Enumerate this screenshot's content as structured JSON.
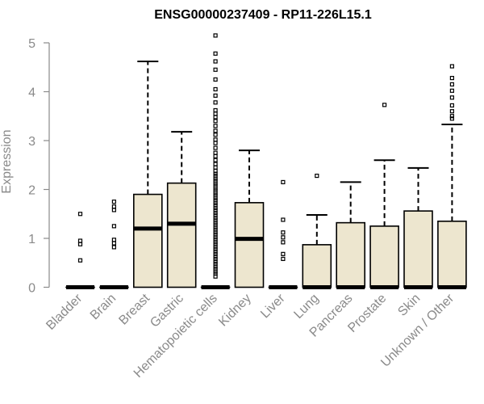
{
  "chart_data": {
    "type": "boxplot",
    "title": "ENSG00000237409 - RP11-226L15.1",
    "xlabel": "",
    "ylabel": "Expression",
    "ylim": [
      0,
      5.15
    ],
    "y_ticks": [
      0,
      1,
      2,
      3,
      4,
      5
    ],
    "grid": false,
    "legend": "none",
    "box_fill": "#ede6cf",
    "categories": [
      "Bladder",
      "Brain",
      "Breast",
      "Gastric",
      "Hematopoietic cells",
      "Kidney",
      "Liver",
      "Lung",
      "Pancreas",
      "Prostate",
      "Skin",
      "Unknown / Other"
    ],
    "boxes": [
      {
        "category": "Bladder",
        "q1": 0,
        "median": 0,
        "q3": 0,
        "whisker_low": 0,
        "whisker_high": 0,
        "outliers": [
          1.5,
          0.95,
          0.88,
          0.55
        ]
      },
      {
        "category": "Brain",
        "q1": 0,
        "median": 0,
        "q3": 0,
        "whisker_low": 0,
        "whisker_high": 0,
        "outliers": [
          1.75,
          1.65,
          1.58,
          1.25,
          0.97,
          0.9,
          0.82
        ]
      },
      {
        "category": "Breast",
        "q1": 0,
        "median": 1.2,
        "q3": 1.9,
        "whisker_low": 0,
        "whisker_high": 4.62,
        "outliers": []
      },
      {
        "category": "Gastric",
        "q1": 0,
        "median": 1.3,
        "q3": 2.13,
        "whisker_low": 0,
        "whisker_high": 3.18,
        "outliers": []
      },
      {
        "category": "Hematopoietic cells",
        "q1": 0,
        "median": 0,
        "q3": 0,
        "whisker_low": 0,
        "whisker_high": 0,
        "outliers": [
          5.15,
          4.78,
          4.62,
          4.45,
          4.25,
          4.05,
          3.92,
          3.78,
          3.62,
          3.55,
          3.48,
          3.4,
          3.3,
          3.2,
          3.12,
          3.02,
          2.95,
          2.85,
          2.75,
          2.68,
          2.6,
          2.52,
          2.45,
          2.38,
          2.32,
          2.28,
          2.22,
          2.18,
          2.12,
          2.08,
          2.02,
          1.98,
          1.92,
          1.88,
          1.82,
          1.78,
          1.72,
          1.68,
          1.62,
          1.58,
          1.52,
          1.48,
          1.42,
          1.38,
          1.32,
          1.28,
          1.22,
          1.18,
          1.12,
          1.08,
          1.02,
          0.98,
          0.92,
          0.88,
          0.82,
          0.78,
          0.72,
          0.68,
          0.62,
          0.58,
          0.52,
          0.48,
          0.42,
          0.38,
          0.32,
          0.28,
          0.22
        ]
      },
      {
        "category": "Kidney",
        "q1": 0,
        "median": 0.99,
        "q3": 1.73,
        "whisker_low": 0,
        "whisker_high": 2.8,
        "outliers": []
      },
      {
        "category": "Liver",
        "q1": 0,
        "median": 0,
        "q3": 0,
        "whisker_low": 0,
        "whisker_high": 0,
        "outliers": [
          2.15,
          1.38,
          1.12,
          1.02,
          0.92,
          0.68,
          0.58
        ]
      },
      {
        "category": "Lung",
        "q1": 0,
        "median": 0,
        "q3": 0.87,
        "whisker_low": 0,
        "whisker_high": 1.48,
        "outliers": [
          2.28
        ]
      },
      {
        "category": "Pancreas",
        "q1": 0,
        "median": 0,
        "q3": 1.32,
        "whisker_low": 0,
        "whisker_high": 2.15,
        "outliers": []
      },
      {
        "category": "Prostate",
        "q1": 0,
        "median": 0,
        "q3": 1.25,
        "whisker_low": 0,
        "whisker_high": 2.6,
        "outliers": [
          3.73
        ]
      },
      {
        "category": "Skin",
        "q1": 0,
        "median": 0,
        "q3": 1.56,
        "whisker_low": 0,
        "whisker_high": 2.44,
        "outliers": []
      },
      {
        "category": "Unknown / Other",
        "q1": 0,
        "median": 0,
        "q3": 1.35,
        "whisker_low": 0,
        "whisker_high": 3.33,
        "outliers": [
          4.52,
          4.28,
          4.15,
          4.02,
          3.88,
          3.72,
          3.6,
          3.5,
          3.45
        ]
      }
    ]
  }
}
